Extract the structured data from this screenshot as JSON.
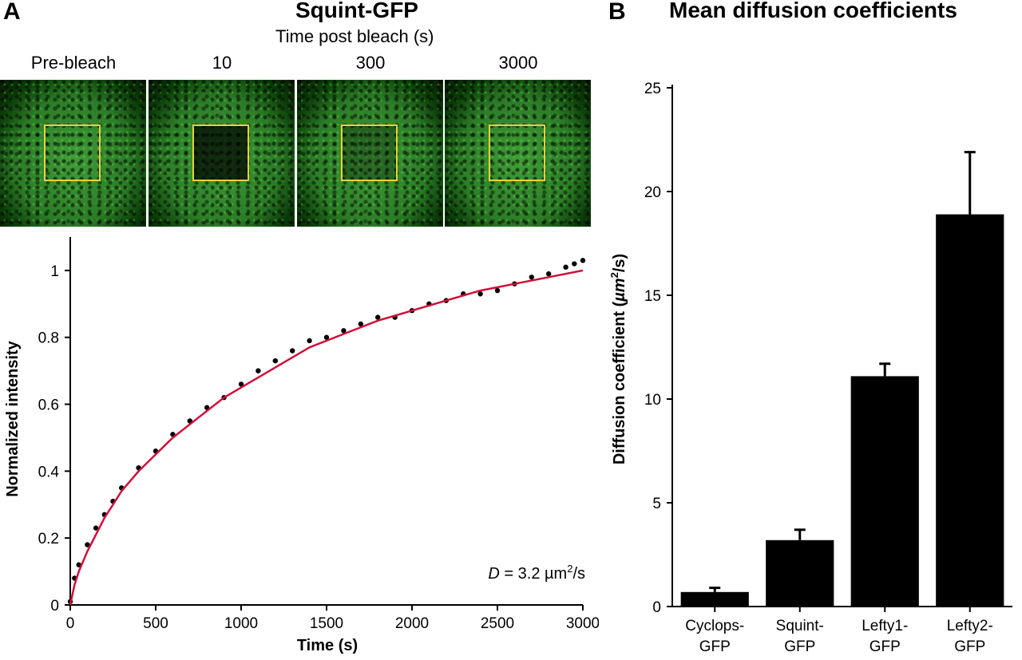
{
  "panel_a": {
    "letter": "A",
    "title": "Squint-GFP",
    "subtitle": "Time post bleach (s)",
    "images": [
      {
        "label": "Pre-bleach",
        "state": "pre"
      },
      {
        "label": "10",
        "state": "bleached"
      },
      {
        "label": "300",
        "state": "partial"
      },
      {
        "label": "3000",
        "state": "recovered"
      }
    ],
    "colors": {
      "fluorescence": "#2fa81e",
      "roi": "#e8d23a"
    }
  },
  "panel_b": {
    "letter": "B",
    "title": "Mean diffusion coefficients"
  },
  "chart_data": [
    {
      "type": "scatter",
      "xlabel": "Time (s)",
      "ylabel": "Normalized intensity",
      "xlim": [
        0,
        3000
      ],
      "ylim": [
        0,
        1.1
      ],
      "xticks": [
        0,
        500,
        1000,
        1500,
        2000,
        2500,
        3000
      ],
      "yticks": [
        0,
        0.2,
        0.4,
        0.6,
        0.8,
        1
      ],
      "annotation": {
        "symbol": "D",
        "text": " = 3.2 µm",
        "superscript": "2",
        "suffix": "/s"
      },
      "series": [
        {
          "kind": "points",
          "color": "#000000",
          "x": [
            0,
            25,
            50,
            100,
            150,
            200,
            250,
            300,
            400,
            500,
            600,
            700,
            800,
            900,
            1000,
            1100,
            1200,
            1300,
            1400,
            1500,
            1600,
            1700,
            1800,
            1900,
            2000,
            2100,
            2200,
            2300,
            2400,
            2500,
            2600,
            2700,
            2800,
            2900,
            2950,
            3000
          ],
          "y": [
            0.01,
            0.08,
            0.12,
            0.18,
            0.23,
            0.27,
            0.31,
            0.35,
            0.41,
            0.46,
            0.51,
            0.55,
            0.59,
            0.62,
            0.66,
            0.7,
            0.73,
            0.76,
            0.79,
            0.8,
            0.82,
            0.84,
            0.86,
            0.86,
            0.88,
            0.9,
            0.91,
            0.93,
            0.93,
            0.94,
            0.96,
            0.98,
            0.99,
            1.01,
            1.02,
            1.03
          ]
        },
        {
          "kind": "fit",
          "color": "#d0103a",
          "x": [
            0,
            25,
            50,
            100,
            150,
            200,
            250,
            300,
            400,
            500,
            600,
            700,
            800,
            900,
            1000,
            1200,
            1400,
            1600,
            1800,
            2000,
            2200,
            2400,
            2600,
            2800,
            3000
          ],
          "y": [
            0,
            0.06,
            0.1,
            0.16,
            0.21,
            0.26,
            0.3,
            0.34,
            0.4,
            0.45,
            0.5,
            0.54,
            0.58,
            0.62,
            0.65,
            0.71,
            0.77,
            0.81,
            0.85,
            0.88,
            0.91,
            0.94,
            0.96,
            0.98,
            1.0
          ]
        }
      ]
    },
    {
      "type": "bar",
      "categories": [
        [
          "Cyclops-",
          "GFP"
        ],
        [
          "Squint-",
          "GFP"
        ],
        [
          "Lefty1-",
          "GFP"
        ],
        [
          "Lefty2-",
          "GFP"
        ]
      ],
      "values": [
        0.7,
        3.2,
        11.1,
        18.9
      ],
      "errors": [
        0.2,
        0.5,
        0.6,
        3.0
      ],
      "ylabel_prefix": "Diffusion coefficient (",
      "ylabel_unit": "µm",
      "ylabel_sup": "2",
      "ylabel_suffix": "/s)",
      "ylim": [
        0,
        25
      ],
      "yticks": [
        0,
        5,
        10,
        15,
        20,
        25
      ],
      "bar_color": "#000000"
    }
  ]
}
